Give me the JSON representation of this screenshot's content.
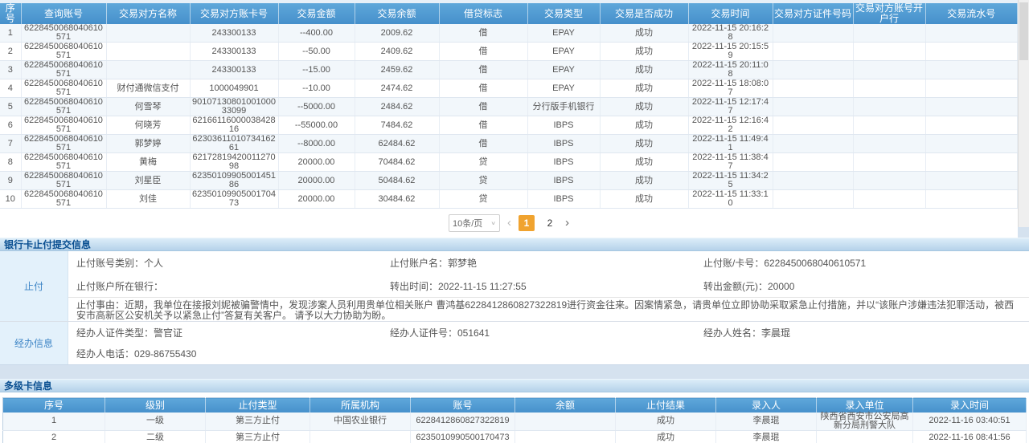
{
  "transactions_table": {
    "columns": [
      "序号",
      "查询账号",
      "交易对方名称",
      "交易对方账卡号",
      "交易金额",
      "交易余额",
      "借贷标志",
      "交易类型",
      "交易是否成功",
      "交易时间",
      "交易对方证件号码",
      "交易对方账号开户行",
      "交易流水号"
    ],
    "rows": [
      [
        "1",
        "6228450068040610571",
        "",
        "243300133",
        "--400.00",
        "2009.62",
        "借",
        "EPAY",
        "成功",
        "2022-11-15 20:16:28",
        "",
        "",
        ""
      ],
      [
        "2",
        "6228450068040610571",
        "",
        "243300133",
        "--50.00",
        "2409.62",
        "借",
        "EPAY",
        "成功",
        "2022-11-15 20:15:59",
        "",
        "",
        ""
      ],
      [
        "3",
        "6228450068040610571",
        "",
        "243300133",
        "--15.00",
        "2459.62",
        "借",
        "EPAY",
        "成功",
        "2022-11-15 20:11:08",
        "",
        "",
        ""
      ],
      [
        "4",
        "6228450068040610571",
        "财付通微信支付",
        "1000049901",
        "--10.00",
        "2474.62",
        "借",
        "EPAY",
        "成功",
        "2022-11-15 18:08:07",
        "",
        "",
        ""
      ],
      [
        "5",
        "6228450068040610571",
        "何雪琴",
        "9010713080100100033099",
        "--5000.00",
        "2484.62",
        "借",
        "分行版手机银行",
        "成功",
        "2022-11-15 12:17:47",
        "",
        "",
        ""
      ],
      [
        "6",
        "6228450068040610571",
        "何晓芳",
        "6216611600003842816",
        "--55000.00",
        "7484.62",
        "借",
        "IBPS",
        "成功",
        "2022-11-15 12:16:42",
        "",
        "",
        ""
      ],
      [
        "7",
        "6228450068040610571",
        "郭梦婷",
        "6230361101073416261",
        "--8000.00",
        "62484.62",
        "借",
        "IBPS",
        "成功",
        "2022-11-15 11:49:41",
        "",
        "",
        ""
      ],
      [
        "8",
        "6228450068040610571",
        "黄梅",
        "6217281942001127098",
        "20000.00",
        "70484.62",
        "贷",
        "IBPS",
        "成功",
        "2022-11-15 11:38:47",
        "",
        "",
        ""
      ],
      [
        "9",
        "6228450068040610571",
        "刘星臣",
        "6235010990500145186",
        "20000.00",
        "50484.62",
        "贷",
        "IBPS",
        "成功",
        "2022-11-15 11:34:25",
        "",
        "",
        ""
      ],
      [
        "10",
        "6228450068040610571",
        "刘佳",
        "6235010990500170473",
        "20000.00",
        "30484.62",
        "贷",
        "IBPS",
        "成功",
        "2022-11-15 11:33:10",
        "",
        "",
        ""
      ]
    ]
  },
  "pagination": {
    "page_size_label": "10条/页",
    "chevron_down_glyph": "∨",
    "prev_glyph": "‹",
    "pages": [
      "1",
      "2"
    ],
    "active_page": "1",
    "next_glyph": "›",
    "active_color": "#f0a32f"
  },
  "stop_payment_panel": {
    "title": "银行卡止付提交信息",
    "stop_label": "止付",
    "agent_label": "经办信息",
    "row1": [
      "止付账号类别：个人",
      "止付账户名：郭梦艳",
      "止付账/卡号：6228450068040610571"
    ],
    "row2": [
      "止付账户所在银行：",
      "转出时间：2022-11-15 11:27:55",
      "转出金额(元)：20000"
    ],
    "reason": "止付事由：近期，我单位在接报刘妮被骗警情中，发现涉案人员利用贵单位相关账户 曹鸿基6228412860827322819进行资金往来。因案情紧急，请贵单位立即协助采取紧急止付措施，并以“该账户涉嫌违法犯罪活动，被西安市高新区公安机关予以紧急止付”答复有关客户。 请予以大力协助为盼。",
    "agent_row1": [
      "经办人证件类型：警官证",
      "经办人证件号：051641",
      "经办人姓名：李晨琨"
    ],
    "agent_row2": [
      "经办人电话：029-86755430"
    ]
  },
  "multilevel_panel": {
    "title": "多级卡信息",
    "columns": [
      "序号",
      "级别",
      "止付类型",
      "所属机构",
      "账号",
      "余额",
      "止付结果",
      "录入人",
      "录入单位",
      "录入时间"
    ],
    "rows": [
      [
        "1",
        "一级",
        "第三方止付",
        "中国农业银行",
        "6228412860827322819",
        "",
        "成功",
        "李晨琨",
        "陕西省西安市公安局高新分局刑警大队",
        "2022-11-16 03:40:51"
      ],
      [
        "2",
        "二级",
        "第三方止付",
        "",
        "6235010990500170473",
        "",
        "成功",
        "李晨琨",
        "",
        "2022-11-16 08:41:56"
      ]
    ]
  },
  "colors": {
    "table_header_blue": "#4690cb",
    "section_title_text": "#0a4f91",
    "side_label_text": "#3d85c6",
    "active_page_orange": "#f0a32f"
  }
}
